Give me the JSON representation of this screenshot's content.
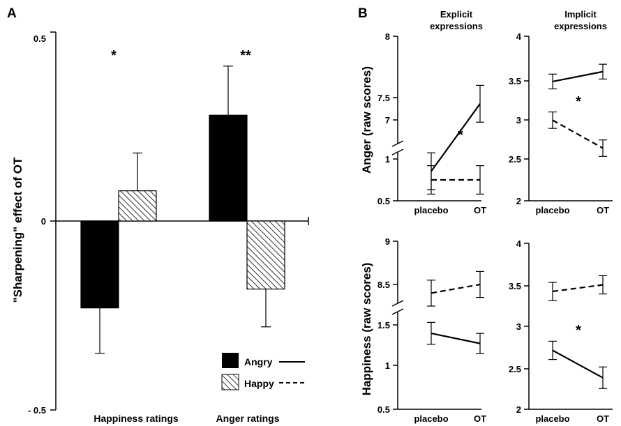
{
  "chart_data": [
    {
      "panel": "A",
      "type": "bar",
      "ylabel": "\"Sharpening\" effect of OT",
      "ylim": [
        -0.5,
        0.5
      ],
      "y_ticks": [
        "0.5",
        "0",
        "- 0.5"
      ],
      "categories": [
        "Happiness ratings",
        "Anger ratings"
      ],
      "significance": [
        "*",
        "**"
      ],
      "series": [
        {
          "name": "Angry",
          "fill": "#000000",
          "values": [
            -0.23,
            0.28
          ],
          "error": [
            0.12,
            0.13
          ]
        },
        {
          "name": "Happy",
          "fill": "hatched",
          "values": [
            0.08,
            -0.18
          ],
          "error": [
            0.1,
            0.1
          ]
        }
      ],
      "legend": {
        "placement": "bottom-right",
        "entries": [
          {
            "label": "Angry",
            "swatch": "solid",
            "line": "solid"
          },
          {
            "label": "Happy",
            "swatch": "hatched",
            "line": "dashed"
          }
        ]
      }
    },
    {
      "panel": "B",
      "type": "line",
      "column_titles": [
        [
          "Explicit",
          "expressions"
        ],
        [
          "Implicit",
          "expressions"
        ]
      ],
      "x": [
        "placebo",
        "OT"
      ],
      "subplots": [
        {
          "ylabel": "Anger (raw scores)",
          "column": "explicit",
          "ylim": [
            0.5,
            8
          ],
          "y_ticks": [
            "8",
            "7.5",
            "7",
            "1",
            "0.5"
          ],
          "axis_break": true,
          "significance": "*",
          "series": [
            {
              "name": "Angry",
              "line": "solid",
              "values": [
                6.9,
                7.45
              ],
              "error": [
                0.15,
                0.15
              ]
            },
            {
              "name": "Happy",
              "line": "dashed",
              "values": [
                0.75,
                0.75
              ],
              "error": [
                0.17,
                0.17
              ]
            }
          ]
        },
        {
          "ylabel": "",
          "column": "implicit",
          "ylim": [
            2,
            4
          ],
          "y_ticks": [
            "4",
            "3.5",
            "3",
            "2.5",
            "2"
          ],
          "significance": "*",
          "series": [
            {
              "name": "Angry",
              "line": "solid",
              "values": [
                3.45,
                3.57
              ],
              "error": [
                0.09,
                0.09
              ]
            },
            {
              "name": "Happy",
              "line": "dashed",
              "values": [
                2.98,
                2.64
              ],
              "error": [
                0.1,
                0.1
              ]
            }
          ]
        },
        {
          "ylabel": "Happiness (raw scores)",
          "column": "explicit",
          "ylim": [
            0.5,
            9
          ],
          "y_ticks": [
            "9",
            "8.5",
            "1.5",
            "1",
            "0.5"
          ],
          "axis_break": true,
          "significance": "",
          "series": [
            {
              "name": "Happy",
              "line": "dashed",
              "values": [
                8.4,
                8.5
              ],
              "error": [
                0.15,
                0.15
              ]
            },
            {
              "name": "Angry",
              "line": "solid",
              "values": [
                1.4,
                1.28
              ],
              "error": [
                0.13,
                0.12
              ]
            }
          ]
        },
        {
          "ylabel": "",
          "column": "implicit",
          "ylim": [
            2,
            4
          ],
          "y_ticks": [
            "4",
            "3.5",
            "3",
            "2.5",
            "2"
          ],
          "significance": "*",
          "series": [
            {
              "name": "Happy",
              "line": "dashed",
              "values": [
                3.42,
                3.5
              ],
              "error": [
                0.11,
                0.11
              ]
            },
            {
              "name": "Angry",
              "line": "solid",
              "values": [
                2.71,
                2.38
              ],
              "error": [
                0.11,
                0.13
              ]
            }
          ]
        }
      ]
    }
  ],
  "panel_labels": [
    "A",
    "B"
  ]
}
